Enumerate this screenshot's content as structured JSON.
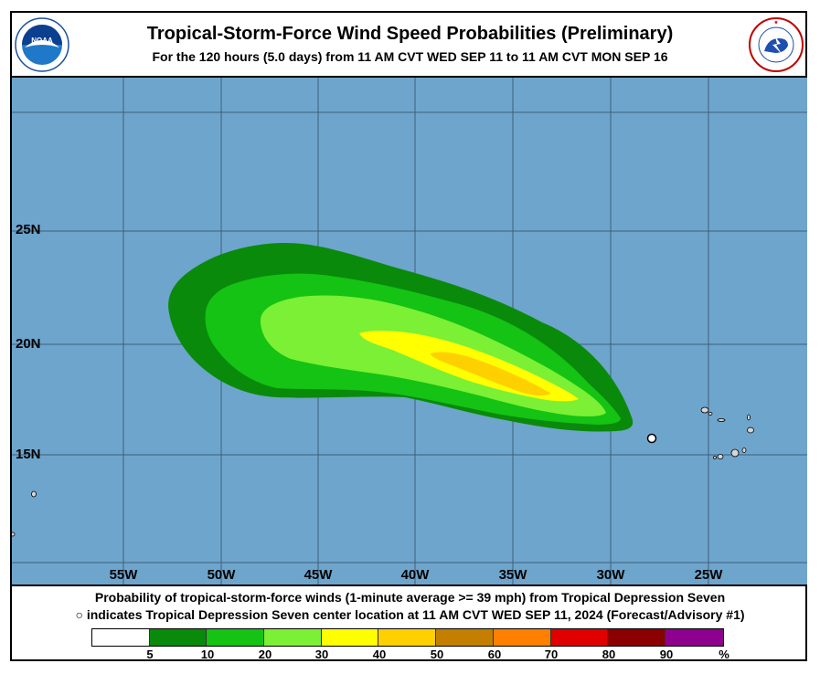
{
  "header": {
    "title": "Tropical-Storm-Force Wind Speed Probabilities (Preliminary)",
    "subtitle": "For the 120 hours (5.0 days) from 11 AM CVT WED SEP 11 to 11 AM CVT MON SEP 16"
  },
  "logos": {
    "left": {
      "text": "NOAA",
      "icon": "noaa-logo"
    },
    "right": {
      "text": "NATIONAL WEATHER SERVICE",
      "icon": "nws-logo"
    }
  },
  "map": {
    "background_color": "#6ea5cc",
    "lat_labels": [
      "25N",
      "20N",
      "15N"
    ],
    "lon_labels": [
      "55W",
      "50W",
      "45W",
      "40W",
      "35W",
      "30W",
      "25W"
    ],
    "storm_center": {
      "lon": -27.9,
      "lat": 15.8,
      "icon": "circle-marker"
    }
  },
  "caption": {
    "line1": "Probability of tropical-storm-force winds (1-minute average >= 39 mph) from Tropical Depression Seven",
    "line2": "indicates Tropical Depression Seven center location at 11 AM CVT WED SEP 11, 2024 (Forecast/Advisory #1)",
    "marker": "○"
  },
  "legend": {
    "colors": [
      "#ffffff",
      "#0a8a0a",
      "#14c314",
      "#7cf034",
      "#ffff00",
      "#ffd000",
      "#c47f00",
      "#ff7f00",
      "#e00000",
      "#8b0000",
      "#8e008e"
    ],
    "labels": [
      "5",
      "10",
      "20",
      "30",
      "40",
      "50",
      "60",
      "70",
      "80",
      "90",
      "%"
    ]
  }
}
